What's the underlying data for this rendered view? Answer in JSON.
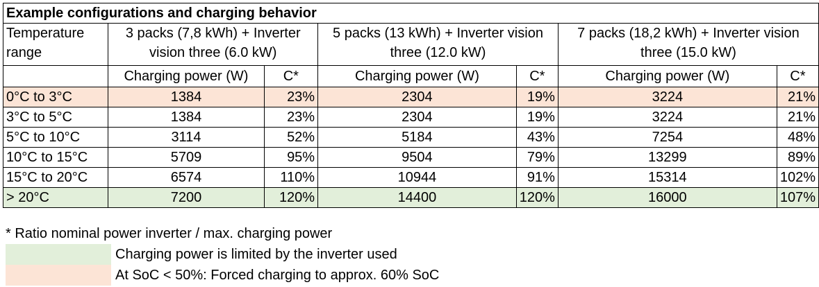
{
  "table": {
    "title": "Example configurations and charging behavior",
    "temperature_header": "Temperature range",
    "configs": [
      "3 packs (7,8 kWh) + Inverter vision three (6.0 kW)",
      "5 packs (13 kWh) + Inverter vision three (12.0 kW)",
      "7 packs (18,2 kWh) + Inverter vision three (15.0 kW)"
    ],
    "sub_power": "Charging power (W)",
    "sub_c": "C*",
    "rows": [
      {
        "range": "0°C to 3°C",
        "values": [
          "1384",
          "23%",
          "2304",
          "19%",
          "3224",
          "21%"
        ]
      },
      {
        "range": "3°C to 5°C",
        "values": [
          "1384",
          "23%",
          "2304",
          "19%",
          "3224",
          "21%"
        ]
      },
      {
        "range": "5°C to 10°C",
        "values": [
          "3114",
          "52%",
          "5184",
          "43%",
          "7254",
          "48%"
        ]
      },
      {
        "range": "10°C to 15°C",
        "values": [
          "5709",
          "95%",
          "9504",
          "79%",
          "13299",
          "89%"
        ]
      },
      {
        "range": "15°C to 20°C",
        "values": [
          "6574",
          "110%",
          "10944",
          "91%",
          "15314",
          "102%"
        ]
      },
      {
        "range": "> 20°C",
        "values": [
          "7200",
          "120%",
          "14400",
          "120%",
          "16000",
          "107%"
        ]
      }
    ]
  },
  "notes": {
    "footnote": "*  Ratio nominal power inverter / max. charging power",
    "green_legend": "Charging power is limited by the inverter used",
    "orange_legend": "At SoC < 50%: Forced charging to approx. 60% SoC"
  },
  "colors": {
    "orange": "#fce4d6",
    "green": "#e2efda"
  }
}
